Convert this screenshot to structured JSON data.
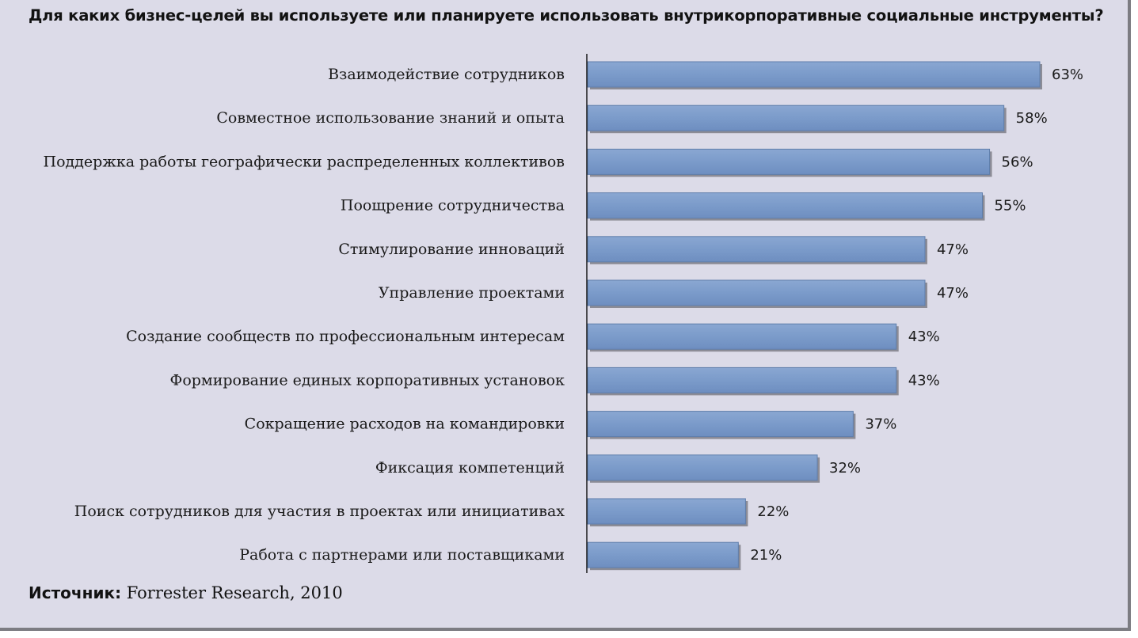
{
  "chart_data": {
    "type": "bar",
    "orientation": "horizontal",
    "title": "Для каких бизнес-целей вы используете или планируете использовать внутрикорпоративные социальные инструменты?",
    "categories": [
      "Взаимодействие сотрудников",
      "Совместное использование знаний и опыта",
      "Поддержка работы географически распределенных коллективов",
      "Поощрение сотрудничества",
      "Стимулирование инноваций",
      "Управление проектами",
      "Создание сообществ по профессиональным интересам",
      "Формирование единых корпоративных установок",
      "Сокращение расходов на командировки",
      "Фиксация компетенций",
      "Поиск сотрудников для участия в проектах или инициативах",
      "Работа с партнерами или поставщиками"
    ],
    "values": [
      63,
      58,
      56,
      55,
      47,
      47,
      43,
      43,
      37,
      32,
      22,
      21
    ],
    "value_labels": [
      "63%",
      "58%",
      "56%",
      "55%",
      "47%",
      "47%",
      "43%",
      "43%",
      "37%",
      "32%",
      "22%",
      "21%"
    ],
    "unit": "%",
    "xlim": [
      0,
      63
    ],
    "grid": false,
    "legend": "none",
    "bar_color": "#7b9bca",
    "bar_edge_color": "#5f7eab",
    "shadow_color": "#8c8c96",
    "background_color": "#dcdbe8"
  },
  "source": {
    "label": "Источник:",
    "text": " Forrester Research, 2010"
  }
}
